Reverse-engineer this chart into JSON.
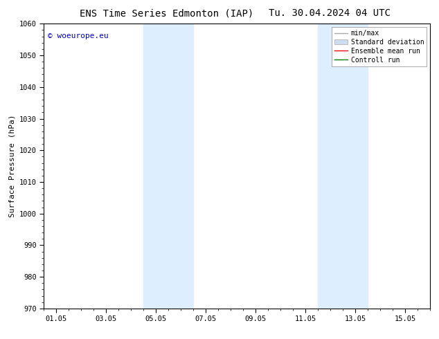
{
  "title_left": "ENS Time Series Edmonton (IAP)",
  "title_right": "Tu. 30.04.2024 04 UTC",
  "ylabel": "Surface Pressure (hPa)",
  "ylim": [
    970,
    1060
  ],
  "yticks": [
    970,
    980,
    990,
    1000,
    1010,
    1020,
    1030,
    1040,
    1050,
    1060
  ],
  "xtick_labels": [
    "01.05",
    "03.05",
    "05.05",
    "07.05",
    "09.05",
    "11.05",
    "13.05",
    "15.05"
  ],
  "xtick_positions": [
    0,
    2,
    4,
    6,
    8,
    10,
    12,
    14
  ],
  "xlim": [
    -0.5,
    15
  ],
  "shaded_bands": [
    {
      "x_start": 3.5,
      "x_end": 5.5,
      "color": "#dceeff"
    },
    {
      "x_start": 10.5,
      "x_end": 12.5,
      "color": "#dceeff"
    }
  ],
  "watermark_text": "© woeurope.eu",
  "watermark_color": "#0000cc",
  "background_color": "#ffffff",
  "legend_entries": [
    {
      "label": "min/max",
      "color": "#aaaaaa",
      "lw": 1.0
    },
    {
      "label": "Standard deviation",
      "color": "#ccddef",
      "lw": 6
    },
    {
      "label": "Ensemble mean run",
      "color": "#ff0000",
      "lw": 1.0
    },
    {
      "label": "Controll run",
      "color": "#007700",
      "lw": 1.0
    }
  ],
  "title_fontsize": 10,
  "axis_fontsize": 8,
  "tick_fontsize": 7.5,
  "legend_fontsize": 7
}
